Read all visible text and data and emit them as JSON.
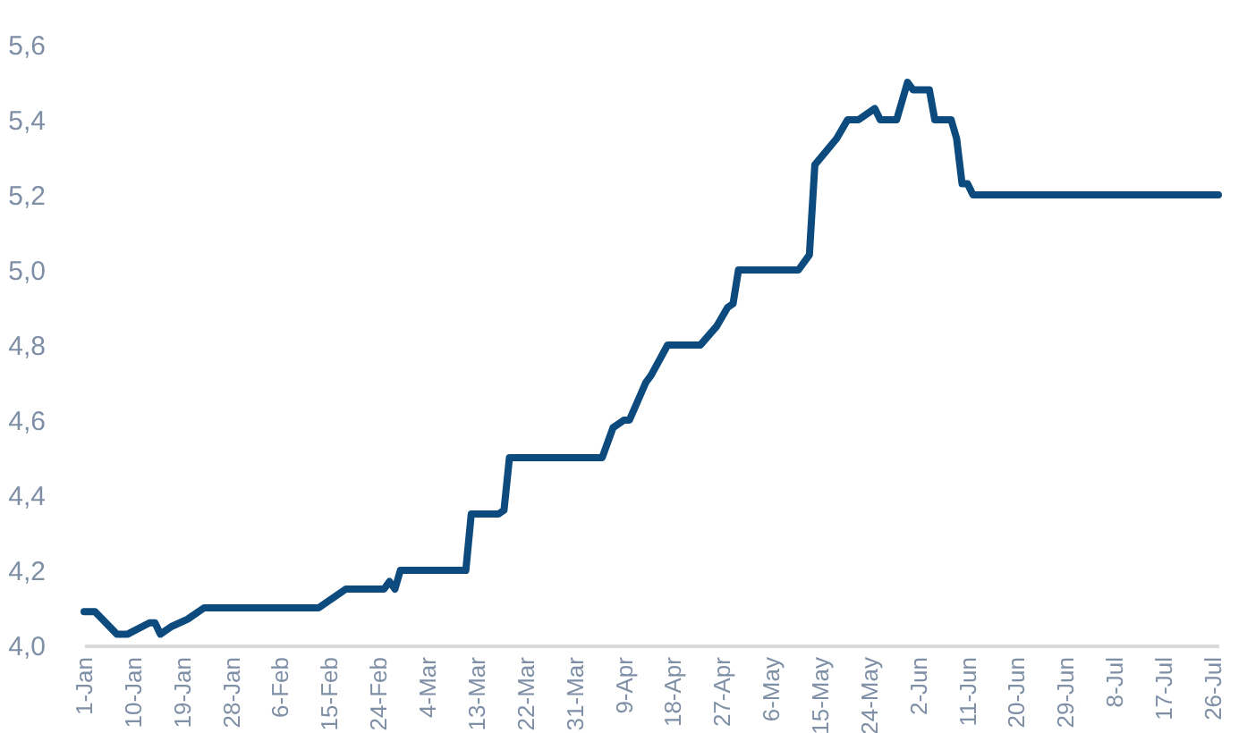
{
  "chart_data": {
    "type": "line",
    "x": [
      "--01-01",
      "--01-03",
      "--01-07",
      "--01-09",
      "--01-13",
      "--01-14",
      "--01-15",
      "--01-17",
      "--01-20",
      "--01-21",
      "--01-23",
      "--02-13",
      "--02-18",
      "--02-25",
      "--02-26",
      "--02-27",
      "--02-28",
      "--03-11",
      "--03-12",
      "--03-17",
      "--03-18",
      "--03-19",
      "--04-05",
      "--04-07",
      "--04-09",
      "--04-10",
      "--04-13",
      "--04-14",
      "--04-17",
      "--04-23",
      "--04-26",
      "--04-28",
      "--04-29",
      "--04-30",
      "--05-11",
      "--05-13",
      "--05-14",
      "--05-18",
      "--05-20",
      "--05-22",
      "--05-25",
      "--05-26",
      "--05-29",
      "--05-31",
      "--06-01",
      "--06-04",
      "--06-05",
      "--06-08",
      "--06-09",
      "--06-10",
      "--06-11",
      "--06-12",
      "--07-27"
    ],
    "series": [
      {
        "color": "#0d4a7e",
        "values": [
          4.09,
          4.09,
          4.03,
          4.03,
          4.06,
          4.06,
          4.03,
          4.05,
          4.07,
          4.08,
          4.1,
          4.1,
          4.15,
          4.15,
          4.17,
          4.15,
          4.2,
          4.2,
          4.35,
          4.35,
          4.36,
          4.5,
          4.5,
          4.58,
          4.6,
          4.6,
          4.7,
          4.72,
          4.8,
          4.8,
          4.85,
          4.9,
          4.91,
          5.0,
          5.0,
          5.04,
          5.28,
          5.35,
          5.4,
          5.4,
          5.43,
          5.4,
          5.4,
          5.5,
          5.48,
          5.48,
          5.4,
          5.4,
          5.35,
          5.23,
          5.23,
          5.2,
          5.2
        ]
      }
    ],
    "xlim": [
      "--01-01",
      "--07-27"
    ],
    "xticks": [
      {
        "value": "--01-01",
        "label": "1-Jan"
      },
      {
        "value": "--01-10",
        "label": "10-Jan"
      },
      {
        "value": "--01-19",
        "label": "19-Jan"
      },
      {
        "value": "--01-28",
        "label": "28-Jan"
      },
      {
        "value": "--02-06",
        "label": "6-Feb"
      },
      {
        "value": "--02-15",
        "label": "15-Feb"
      },
      {
        "value": "--02-24",
        "label": "24-Feb"
      },
      {
        "value": "--03-04",
        "label": "4-Mar"
      },
      {
        "value": "--03-13",
        "label": "13-Mar"
      },
      {
        "value": "--03-22",
        "label": "22-Mar"
      },
      {
        "value": "--03-31",
        "label": "31-Mar"
      },
      {
        "value": "--04-09",
        "label": "9-Apr"
      },
      {
        "value": "--04-18",
        "label": "18-Apr"
      },
      {
        "value": "--04-27",
        "label": "27-Apr"
      },
      {
        "value": "--05-06",
        "label": "6-May"
      },
      {
        "value": "--05-15",
        "label": "15-May"
      },
      {
        "value": "--05-24",
        "label": "24-May"
      },
      {
        "value": "--06-02",
        "label": "2-Jun"
      },
      {
        "value": "--06-11",
        "label": "11-Jun"
      },
      {
        "value": "--06-20",
        "label": "20-Jun"
      },
      {
        "value": "--06-29",
        "label": "29-Jun"
      },
      {
        "value": "--07-08",
        "label": "8-Jul"
      },
      {
        "value": "--07-17",
        "label": "17-Jul"
      },
      {
        "value": "--07-26",
        "label": "26-Jul"
      }
    ],
    "ylim": [
      4.0,
      5.6
    ],
    "yticks": [
      {
        "value": 4.0,
        "label": "4,0"
      },
      {
        "value": 4.2,
        "label": "4,2"
      },
      {
        "value": 4.4,
        "label": "4,4"
      },
      {
        "value": 4.6,
        "label": "4,6"
      },
      {
        "value": 4.8,
        "label": "4,8"
      },
      {
        "value": 5.0,
        "label": "5,0"
      },
      {
        "value": 5.2,
        "label": "5,2"
      },
      {
        "value": 5.4,
        "label": "5,4"
      },
      {
        "value": 5.6,
        "label": "5,6"
      }
    ],
    "grid": false
  }
}
